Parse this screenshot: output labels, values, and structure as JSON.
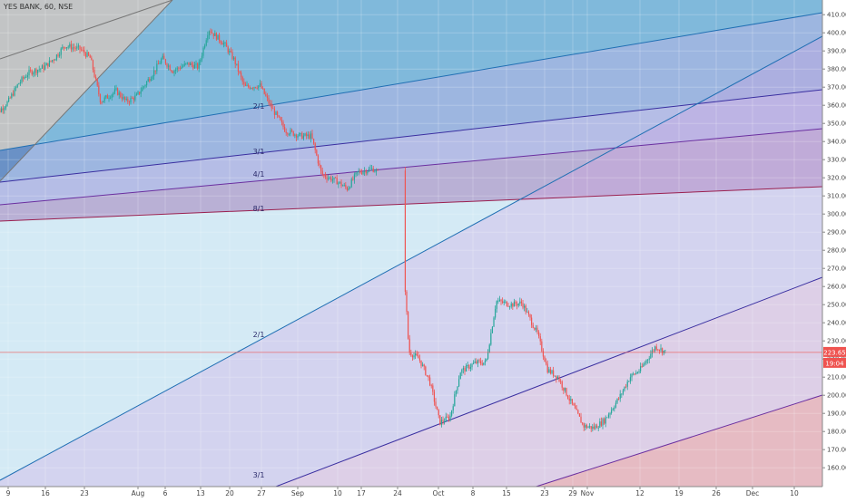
{
  "header": {
    "symbol": "YES BANK, 60, NSE"
  },
  "colors": {
    "candle_up": "#26a69a",
    "candle_down": "#ef5350",
    "last_price": "#ef5350",
    "fan_lines": [
      "#1f6fb3",
      "#3a2fa0",
      "#6a2fa0",
      "#9a2050",
      "#3a2fa0",
      "#1f6fb3",
      "#6a2fa0"
    ],
    "fills": [
      "#3a8fc4",
      "#5a78c8",
      "#7a6acc",
      "#9a6ab0",
      "#cc6a7a",
      "#c0c0c0",
      "#9fd0e8",
      "#d0a0e0",
      "#e8b0d8",
      "#f0a8a0"
    ]
  },
  "last_price": {
    "value": "223.65",
    "time": "19:04"
  },
  "chart_data": {
    "type": "line",
    "title": "YES BANK, 60, NSE",
    "xlabel": "",
    "ylabel": "",
    "ylim": [
      150,
      415
    ],
    "grid": true,
    "x_ticks": [
      "9",
      "16",
      "23",
      "Aug",
      "6",
      "13",
      "20",
      "27",
      "Sep",
      "10",
      "17",
      "24",
      "Oct",
      "8",
      "15",
      "23",
      "29",
      "Nov",
      "12",
      "19",
      "26",
      "Dec",
      "10"
    ],
    "y_ticks": [
      "160.00",
      "170.00",
      "180.00",
      "190.00",
      "200.00",
      "210.00",
      "220.00",
      "230.00",
      "240.00",
      "250.00",
      "260.00",
      "270.00",
      "280.00",
      "290.00",
      "300.00",
      "310.00",
      "320.00",
      "330.00",
      "340.00",
      "350.00",
      "360.00",
      "370.00",
      "380.00",
      "390.00",
      "400.00",
      "410.00"
    ],
    "fan_labels": [
      "2/1",
      "3/1",
      "4/1",
      "8/1",
      "2/1",
      "3/1"
    ],
    "series": [
      {
        "values": [
          [
            "Jul 6",
            353
          ],
          [
            "Jul 9",
            362
          ],
          [
            "Jul 11",
            372
          ],
          [
            "Jul 13",
            378
          ],
          [
            "Jul 16",
            381
          ],
          [
            "Jul 18",
            386
          ],
          [
            "Jul 20",
            393
          ],
          [
            "Jul 23",
            391
          ],
          [
            "Jul 25",
            386
          ],
          [
            "Jul 27",
            362
          ],
          [
            "Jul 30",
            368
          ],
          [
            "Aug 1",
            362
          ],
          [
            "Aug 3",
            365
          ],
          [
            "Aug 6",
            377
          ],
          [
            "Aug 8",
            386
          ],
          [
            "Aug 10",
            379
          ],
          [
            "Aug 13",
            383
          ],
          [
            "Aug 15",
            381
          ],
          [
            "Aug 17",
            402
          ],
          [
            "Aug 20",
            394
          ],
          [
            "Aug 22",
            385
          ],
          [
            "Aug 24",
            370
          ],
          [
            "Aug 27",
            371
          ],
          [
            "Aug 29",
            360
          ],
          [
            "Sep 1",
            346
          ],
          [
            "Sep 4",
            343
          ],
          [
            "Sep 6",
            343
          ],
          [
            "Sep 8",
            322
          ],
          [
            "Sep 11",
            318
          ],
          [
            "Sep 13",
            314
          ],
          [
            "Sep 15",
            323
          ],
          [
            "Sep 18",
            325
          ],
          [
            "Sep 20",
            320
          ],
          [
            "Sep 24",
            272
          ],
          [
            "Sep 25",
            224
          ],
          [
            "Sep 27",
            220
          ],
          [
            "Sep 29",
            208
          ],
          [
            "Oct 1",
            185
          ],
          [
            "Oct 3",
            188
          ],
          [
            "Oct 5",
            213
          ],
          [
            "Oct 8",
            218
          ],
          [
            "Oct 10",
            218
          ],
          [
            "Oct 12",
            252
          ],
          [
            "Oct 15",
            250
          ],
          [
            "Oct 17",
            251
          ],
          [
            "Oct 20",
            234
          ],
          [
            "Oct 22",
            214
          ],
          [
            "Oct 24",
            210
          ],
          [
            "Oct 26",
            199
          ],
          [
            "Oct 29",
            183
          ],
          [
            "Oct 31",
            182
          ],
          [
            "Nov 2",
            186
          ],
          [
            "Nov 5",
            199
          ],
          [
            "Nov 7",
            210
          ],
          [
            "Nov 9",
            214
          ],
          [
            "Nov 12",
            227
          ],
          [
            "Nov 14",
            223.65
          ]
        ]
      }
    ]
  }
}
